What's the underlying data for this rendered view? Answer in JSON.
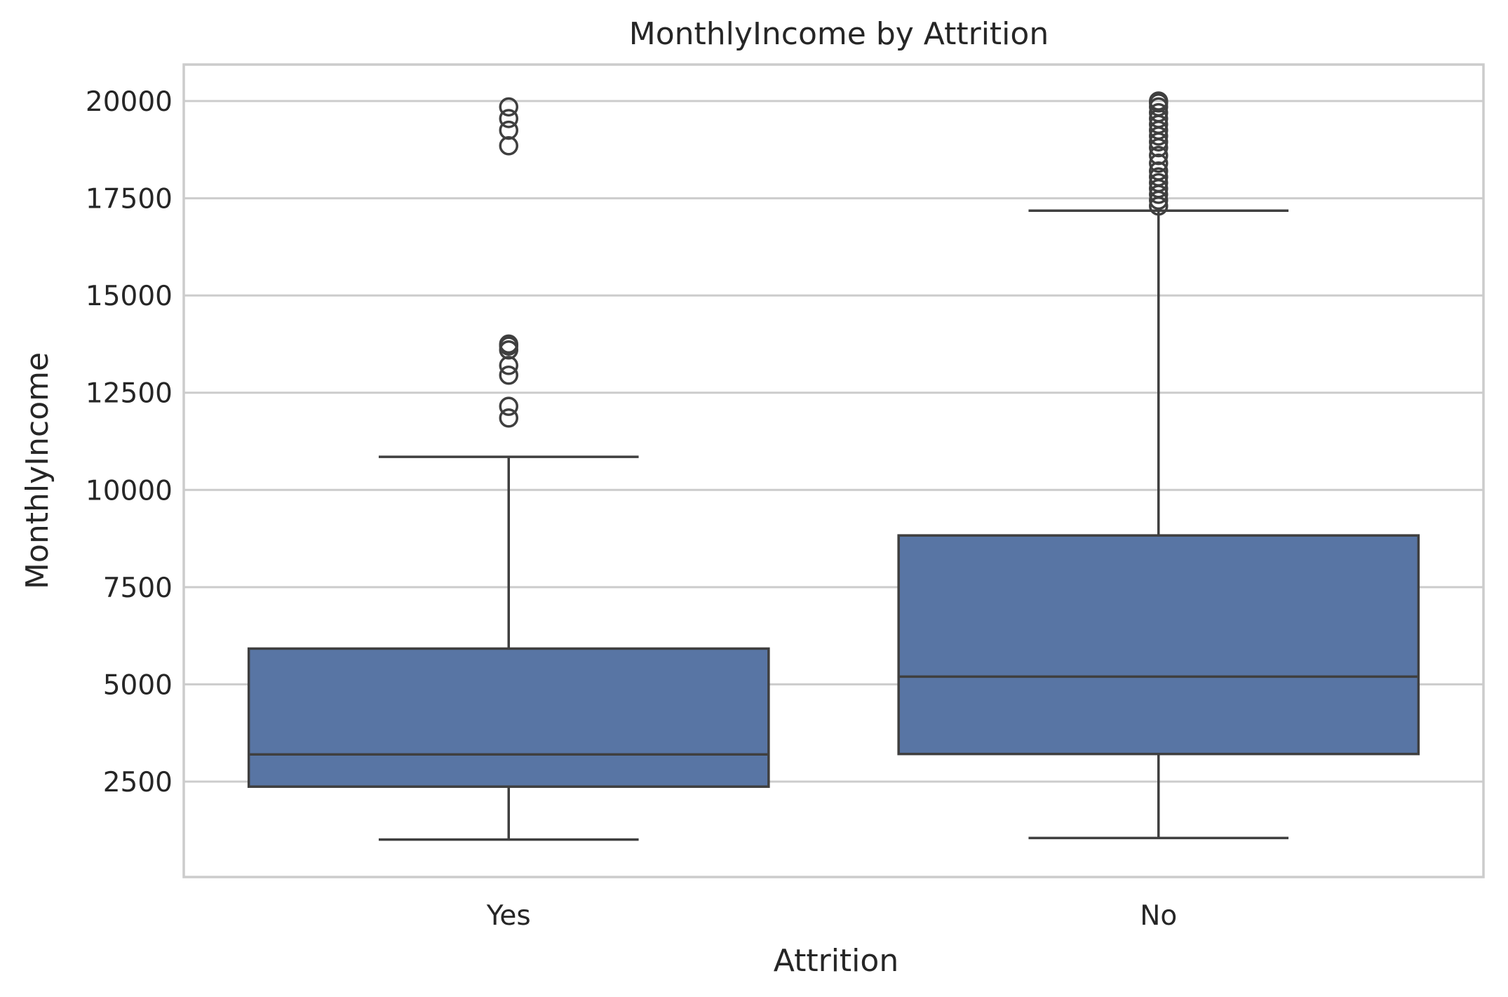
{
  "chart_data": {
    "type": "box",
    "title": "MonthlyIncome by Attrition",
    "xlabel": "Attrition",
    "ylabel": "MonthlyIncome",
    "ylim": [
      0,
      21000
    ],
    "yticks": [
      2500,
      5000,
      7500,
      10000,
      12500,
      15000,
      17500,
      20000
    ],
    "grid": true,
    "colors": {
      "box_fill": "#5875a4",
      "line": "#3f3f3f",
      "grid": "#cccccc"
    },
    "categories": [
      "Yes",
      "No"
    ],
    "boxes": [
      {
        "category": "Yes",
        "whisker_low": 1010,
        "q1": 2370,
        "median": 3200,
        "q3": 5920,
        "whisker_high": 10850,
        "outliers": [
          11850,
          12150,
          12950,
          13200,
          13600,
          13700,
          13750,
          18850,
          19250,
          19550,
          19850
        ]
      },
      {
        "category": "No",
        "whisker_low": 1050,
        "q1": 3210,
        "median": 5200,
        "q3": 8830,
        "whisker_high": 17180,
        "outliers": [
          17300,
          17450,
          17600,
          17750,
          17900,
          18050,
          18200,
          18400,
          18600,
          18800,
          18950,
          19100,
          19250,
          19400,
          19550,
          19700,
          19850,
          19950,
          20000
        ]
      }
    ]
  }
}
